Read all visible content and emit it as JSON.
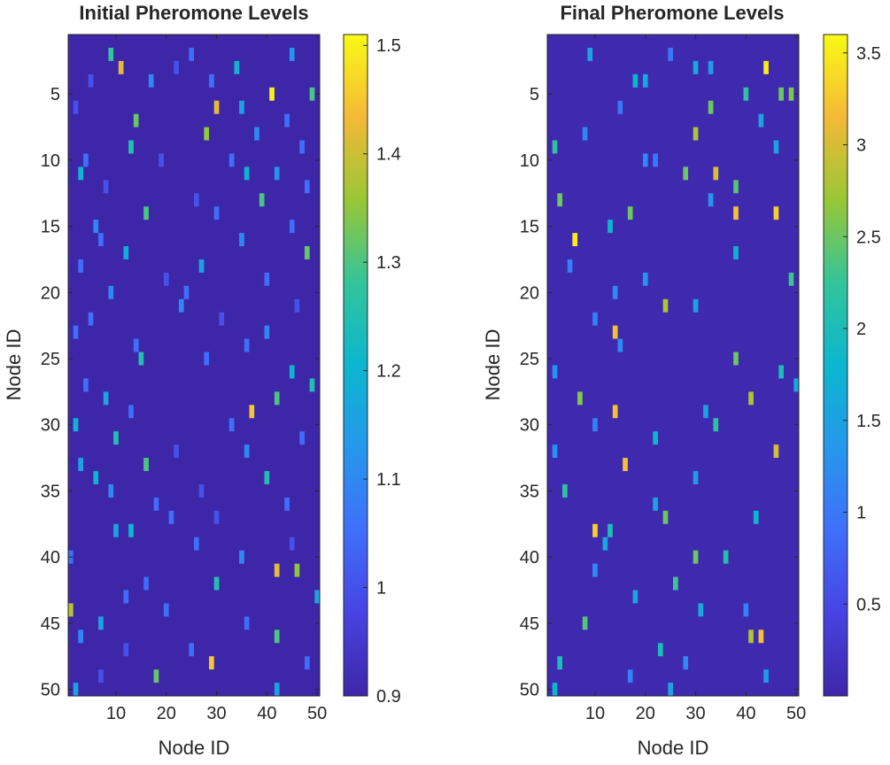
{
  "chart_data": [
    {
      "type": "heatmap",
      "title": "Initial Pheromone Levels",
      "xlabel": "Node ID",
      "ylabel": "Node ID",
      "xlim": [
        1,
        50
      ],
      "ylim": [
        1,
        50
      ],
      "xticks": [
        10,
        20,
        30,
        40,
        50
      ],
      "yticks": [
        5,
        10,
        15,
        20,
        25,
        30,
        35,
        40,
        45,
        50
      ],
      "colorbar": {
        "min": 0.9,
        "max": 1.51,
        "ticks": [
          0.9,
          1,
          1.1,
          1.2,
          1.3,
          1.4,
          1.5
        ],
        "tick_labels": [
          "0.9",
          "1",
          "1.1",
          "1.2",
          "1.3",
          "1.4",
          "1.5"
        ]
      },
      "base_value": 0.9,
      "cells": [
        [
          2,
          9,
          1.28
        ],
        [
          2,
          25,
          1.05
        ],
        [
          2,
          45,
          1.12
        ],
        [
          3,
          11,
          1.42
        ],
        [
          3,
          22,
          1.0
        ],
        [
          3,
          34,
          1.2
        ],
        [
          4,
          5,
          1.0
        ],
        [
          4,
          17,
          1.1
        ],
        [
          4,
          29,
          1.05
        ],
        [
          5,
          41,
          1.5
        ],
        [
          5,
          49,
          1.3
        ],
        [
          6,
          30,
          1.42
        ],
        [
          6,
          2,
          1.0
        ],
        [
          6,
          35,
          1.15
        ],
        [
          7,
          14,
          1.32
        ],
        [
          7,
          44,
          1.05
        ],
        [
          8,
          28,
          1.35
        ],
        [
          8,
          38,
          1.1
        ],
        [
          9,
          13,
          1.25
        ],
        [
          9,
          47,
          1.05
        ],
        [
          10,
          19,
          1.0
        ],
        [
          10,
          33,
          1.05
        ],
        [
          10,
          4,
          1.05
        ],
        [
          11,
          3,
          1.2
        ],
        [
          11,
          36,
          1.2
        ],
        [
          11,
          42,
          1.12
        ],
        [
          12,
          8,
          1.0
        ],
        [
          12,
          48,
          1.05
        ],
        [
          13,
          39,
          1.3
        ],
        [
          13,
          26,
          1.0
        ],
        [
          14,
          16,
          1.3
        ],
        [
          14,
          30,
          1.05
        ],
        [
          15,
          6,
          1.1
        ],
        [
          15,
          45,
          1.05
        ],
        [
          16,
          7,
          1.05
        ],
        [
          16,
          35,
          1.1
        ],
        [
          17,
          12,
          1.18
        ],
        [
          17,
          48,
          1.32
        ],
        [
          18,
          3,
          1.05
        ],
        [
          18,
          27,
          1.15
        ],
        [
          19,
          20,
          1.0
        ],
        [
          19,
          40,
          1.05
        ],
        [
          20,
          9,
          1.1
        ],
        [
          20,
          24,
          1.05
        ],
        [
          21,
          23,
          1.1
        ],
        [
          21,
          46,
          1.0
        ],
        [
          22,
          5,
          1.05
        ],
        [
          22,
          31,
          1.0
        ],
        [
          23,
          2,
          1.05
        ],
        [
          23,
          40,
          1.1
        ],
        [
          24,
          14,
          1.05
        ],
        [
          24,
          36,
          1.05
        ],
        [
          25,
          15,
          1.25
        ],
        [
          25,
          28,
          1.05
        ],
        [
          26,
          45,
          1.2
        ],
        [
          27,
          4,
          1.05
        ],
        [
          27,
          49,
          1.25
        ],
        [
          28,
          8,
          1.15
        ],
        [
          28,
          42,
          1.3
        ],
        [
          29,
          13,
          1.05
        ],
        [
          29,
          37,
          1.45
        ],
        [
          30,
          2,
          1.2
        ],
        [
          30,
          33,
          1.05
        ],
        [
          31,
          10,
          1.25
        ],
        [
          31,
          47,
          1.05
        ],
        [
          32,
          22,
          1.0
        ],
        [
          32,
          36,
          1.1
        ],
        [
          33,
          3,
          1.15
        ],
        [
          33,
          16,
          1.3
        ],
        [
          34,
          6,
          1.2
        ],
        [
          34,
          40,
          1.25
        ],
        [
          35,
          9,
          1.1
        ],
        [
          35,
          27,
          1.0
        ],
        [
          36,
          18,
          1.05
        ],
        [
          36,
          44,
          1.05
        ],
        [
          37,
          21,
          1.05
        ],
        [
          37,
          30,
          1.0
        ],
        [
          38,
          10,
          1.15
        ],
        [
          38,
          13,
          1.2
        ],
        [
          39,
          26,
          1.05
        ],
        [
          39,
          45,
          1.0
        ],
        [
          40,
          1,
          1.05
        ],
        [
          40,
          35,
          1.1
        ],
        [
          41,
          42,
          1.42
        ],
        [
          41,
          46,
          1.35
        ],
        [
          42,
          16,
          1.05
        ],
        [
          42,
          30,
          1.25
        ],
        [
          43,
          12,
          1.05
        ],
        [
          43,
          50,
          1.15
        ],
        [
          44,
          1,
          1.38
        ],
        [
          44,
          20,
          1.05
        ],
        [
          45,
          7,
          1.15
        ],
        [
          45,
          36,
          1.05
        ],
        [
          46,
          3,
          1.1
        ],
        [
          46,
          42,
          1.3
        ],
        [
          47,
          25,
          1.05
        ],
        [
          47,
          12,
          1.0
        ],
        [
          48,
          29,
          1.45
        ],
        [
          48,
          48,
          1.05
        ],
        [
          49,
          18,
          1.32
        ],
        [
          49,
          7,
          1.0
        ],
        [
          50,
          2,
          1.15
        ],
        [
          50,
          42,
          1.15
        ]
      ]
    },
    {
      "type": "heatmap",
      "title": "Final Pheromone Levels",
      "xlabel": "Node ID",
      "ylabel": "Node ID",
      "xlim": [
        1,
        50
      ],
      "ylim": [
        1,
        50
      ],
      "xticks": [
        10,
        20,
        30,
        40,
        50
      ],
      "yticks": [
        5,
        10,
        15,
        20,
        25,
        30,
        35,
        40,
        45,
        50
      ],
      "colorbar": {
        "min": 0,
        "max": 3.6,
        "ticks": [
          0.5,
          1,
          1.5,
          2,
          2.5,
          3,
          3.5
        ],
        "tick_labels": [
          "0.5",
          "1",
          "1.5",
          "2",
          "2.5",
          "3",
          "3.5"
        ]
      },
      "base_value": 0.05,
      "cells": [
        [
          2,
          9,
          1.5
        ],
        [
          2,
          25,
          1.0
        ],
        [
          3,
          30,
          1.6
        ],
        [
          3,
          33,
          1.4
        ],
        [
          3,
          44,
          3.5
        ],
        [
          4,
          18,
          1.8
        ],
        [
          4,
          20,
          1.6
        ],
        [
          5,
          40,
          2.2
        ],
        [
          5,
          47,
          2.5
        ],
        [
          5,
          49,
          2.6
        ],
        [
          6,
          33,
          2.5
        ],
        [
          6,
          15,
          1.0
        ],
        [
          7,
          43,
          1.5
        ],
        [
          8,
          30,
          2.8
        ],
        [
          8,
          8,
          1.2
        ],
        [
          9,
          2,
          2.2
        ],
        [
          9,
          46,
          1.5
        ],
        [
          10,
          20,
          1.2
        ],
        [
          10,
          22,
          1.0
        ],
        [
          11,
          34,
          3.0
        ],
        [
          11,
          28,
          2.5
        ],
        [
          12,
          38,
          2.4
        ],
        [
          13,
          3,
          2.5
        ],
        [
          13,
          33,
          1.3
        ],
        [
          14,
          38,
          3.2
        ],
        [
          14,
          46,
          3.3
        ],
        [
          14,
          17,
          2.5
        ],
        [
          15,
          13,
          1.8
        ],
        [
          16,
          6,
          3.5
        ],
        [
          17,
          38,
          1.7
        ],
        [
          18,
          5,
          1.1
        ],
        [
          19,
          20,
          1.3
        ],
        [
          19,
          49,
          2.3
        ],
        [
          20,
          14,
          1.2
        ],
        [
          21,
          24,
          2.8
        ],
        [
          21,
          30,
          1.5
        ],
        [
          22,
          10,
          1.1
        ],
        [
          23,
          14,
          3.2
        ],
        [
          24,
          15,
          1.2
        ],
        [
          25,
          38,
          2.5
        ],
        [
          26,
          2,
          1.3
        ],
        [
          26,
          47,
          2.0
        ],
        [
          27,
          50,
          1.6
        ],
        [
          28,
          7,
          2.6
        ],
        [
          28,
          41,
          2.8
        ],
        [
          29,
          14,
          3.2
        ],
        [
          29,
          32,
          1.5
        ],
        [
          30,
          34,
          2.2
        ],
        [
          30,
          10,
          1.1
        ],
        [
          31,
          22,
          1.8
        ],
        [
          32,
          2,
          1.3
        ],
        [
          32,
          46,
          3.0
        ],
        [
          33,
          16,
          3.2
        ],
        [
          34,
          30,
          1.4
        ],
        [
          35,
          4,
          2.2
        ],
        [
          36,
          22,
          1.5
        ],
        [
          37,
          24,
          2.5
        ],
        [
          37,
          42,
          1.8
        ],
        [
          38,
          10,
          3.3
        ],
        [
          38,
          13,
          2.0
        ],
        [
          39,
          12,
          1.6
        ],
        [
          40,
          30,
          2.5
        ],
        [
          40,
          36,
          2.1
        ],
        [
          41,
          10,
          1.2
        ],
        [
          42,
          26,
          2.3
        ],
        [
          43,
          18,
          1.5
        ],
        [
          44,
          31,
          1.6
        ],
        [
          44,
          40,
          1.1
        ],
        [
          45,
          8,
          2.4
        ],
        [
          46,
          41,
          2.8
        ],
        [
          46,
          43,
          3.2
        ],
        [
          47,
          23,
          2.0
        ],
        [
          48,
          3,
          2.0
        ],
        [
          48,
          28,
          1.2
        ],
        [
          49,
          17,
          1.1
        ],
        [
          49,
          44,
          1.4
        ],
        [
          50,
          2,
          1.8
        ],
        [
          50,
          25,
          1.5
        ]
      ]
    }
  ]
}
